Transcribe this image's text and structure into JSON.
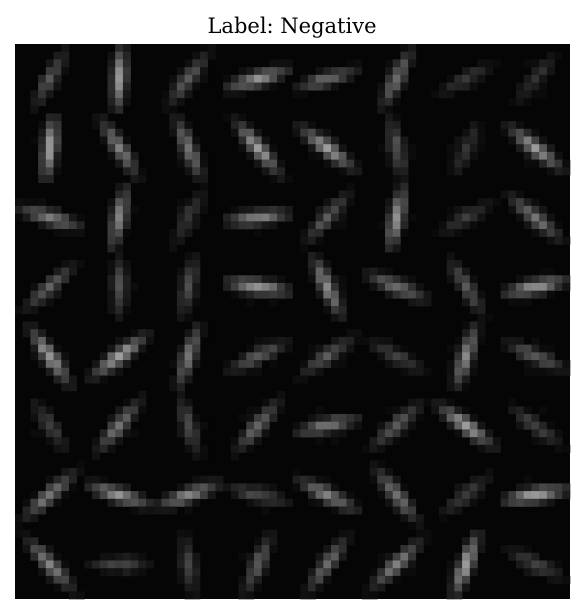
{
  "title": "Label: Negative"
}
